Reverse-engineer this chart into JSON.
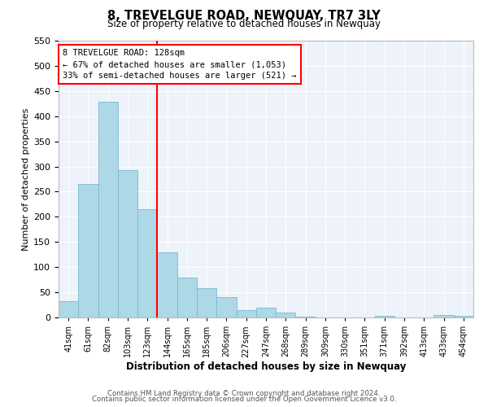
{
  "title": "8, TREVELGUE ROAD, NEWQUAY, TR7 3LY",
  "subtitle": "Size of property relative to detached houses in Newquay",
  "xlabel": "Distribution of detached houses by size in Newquay",
  "ylabel": "Number of detached properties",
  "bar_labels": [
    "41sqm",
    "61sqm",
    "82sqm",
    "103sqm",
    "123sqm",
    "144sqm",
    "165sqm",
    "185sqm",
    "206sqm",
    "227sqm",
    "247sqm",
    "268sqm",
    "289sqm",
    "309sqm",
    "330sqm",
    "351sqm",
    "371sqm",
    "392sqm",
    "413sqm",
    "433sqm",
    "454sqm"
  ],
  "bar_values": [
    32,
    265,
    428,
    293,
    215,
    130,
    79,
    58,
    40,
    15,
    20,
    9,
    2,
    0,
    0,
    0,
    4,
    0,
    0,
    5,
    3
  ],
  "bar_color": "#add8e6",
  "bar_edge_color": "#7ab8d0",
  "vline_color": "red",
  "vline_pos": 4.5,
  "annotation_text": "8 TREVELGUE ROAD: 128sqm\n← 67% of detached houses are smaller (1,053)\n33% of semi-detached houses are larger (521) →",
  "annotation_box_color": "white",
  "annotation_box_edge": "red",
  "ylim": [
    0,
    550
  ],
  "yticks": [
    0,
    50,
    100,
    150,
    200,
    250,
    300,
    350,
    400,
    450,
    500,
    550
  ],
  "footer_line1": "Contains HM Land Registry data © Crown copyright and database right 2024.",
  "footer_line2": "Contains public sector information licensed under the Open Government Licence v3.0.",
  "background_color": "#eef2fa"
}
